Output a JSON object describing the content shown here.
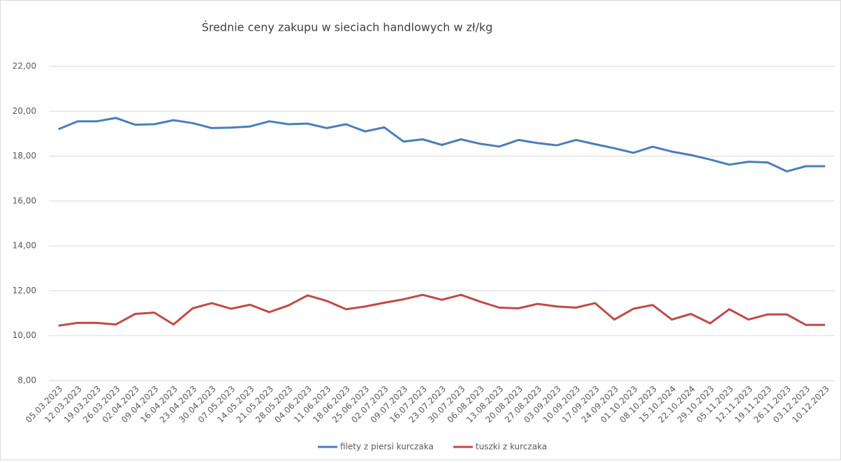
{
  "chart_data": {
    "type": "line",
    "title": "Średnie ceny zakupu w sieciach handlowych w zł/kg",
    "categories": [
      "05.03.2023",
      "12.03.2023",
      "19.03.2023",
      "26.03.2023",
      "02.04.2023",
      "09.04.2023",
      "16.04.2023",
      "23.04.2023",
      "30.04.2023",
      "07.05.2023",
      "14.05.2023",
      "21.05.2023",
      "28.05.2023",
      "04.06.2023",
      "11.06.2023",
      "18.06.2023",
      "25.06.2023",
      "02.07.2023",
      "09.07.2023",
      "16.07.2023",
      "23.07.2023",
      "30.07.2023",
      "06.08.2023",
      "13.08.2023",
      "20.08.2023",
      "27.08.2023",
      "03.09.2023",
      "10.09.2023",
      "17.09.2023",
      "24.09.2023",
      "01.10.2023",
      "08.10.2023",
      "15.10.2024",
      "22.10.2024",
      "29.10.2023",
      "05.11.2023",
      "12.11.2023",
      "19.11.2023",
      "26.11.2023",
      "03.12.2023",
      "10.12.2023"
    ],
    "series": [
      {
        "name": "filety z piersi kurczaka",
        "color": "#4a7ebb",
        "values": [
          19.2,
          19.55,
          19.55,
          19.7,
          19.4,
          19.42,
          19.6,
          19.47,
          19.25,
          19.27,
          19.32,
          19.55,
          19.42,
          19.45,
          19.25,
          19.42,
          19.1,
          19.28,
          18.65,
          18.75,
          18.5,
          18.75,
          18.55,
          18.43,
          18.72,
          18.58,
          18.48,
          18.72,
          18.53,
          18.35,
          18.15,
          18.42,
          18.2,
          18.05,
          17.85,
          17.62,
          17.75,
          17.72,
          17.32,
          17.55,
          17.55
        ]
      },
      {
        "name": "tuszki  z kurczaka",
        "color": "#be4b48",
        "values": [
          10.45,
          10.57,
          10.57,
          10.5,
          10.97,
          11.03,
          10.5,
          11.22,
          11.45,
          11.2,
          11.38,
          11.05,
          11.35,
          11.8,
          11.55,
          11.18,
          11.3,
          11.47,
          11.62,
          11.82,
          11.6,
          11.82,
          11.52,
          11.25,
          11.22,
          11.42,
          11.3,
          11.25,
          11.45,
          10.72,
          11.2,
          11.37,
          10.72,
          10.97,
          10.55,
          11.18,
          10.72,
          10.95,
          10.95,
          10.48,
          10.48
        ]
      }
    ],
    "ylim": [
      8,
      22
    ],
    "yticks": [
      {
        "value": 8,
        "label": "8,00"
      },
      {
        "value": 10,
        "label": "10,00"
      },
      {
        "value": 12,
        "label": "12,00"
      },
      {
        "value": 14,
        "label": "14,00"
      },
      {
        "value": 16,
        "label": "16,00"
      },
      {
        "value": 18,
        "label": "18,00"
      },
      {
        "value": 20,
        "label": "20,00"
      },
      {
        "value": 22,
        "label": "22,00"
      }
    ],
    "grid": true,
    "legend": "bottom"
  }
}
